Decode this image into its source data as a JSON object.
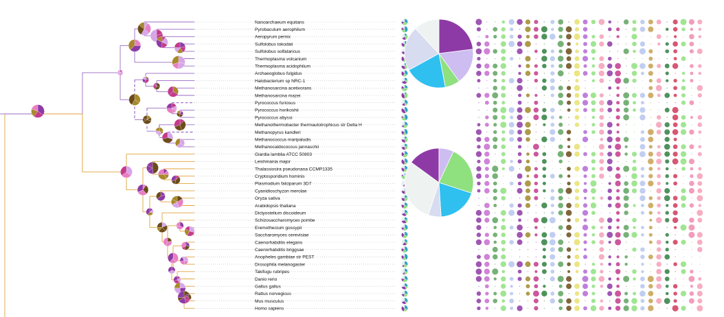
{
  "colors": {
    "archaea_branch": "#9b6ac2",
    "eukaryota_branch": "#e0a23a",
    "dashed_branch": "#6a2a82",
    "leader_dots": "#bbbbbb",
    "label_default": "#111111",
    "label_gallus": "#f2e600",
    "label_homo": "#4ee04e",
    "pie_palette": [
      "#8e3aa6",
      "#c33b8c",
      "#a8882a",
      "#d6a6e8",
      "#e87fc4",
      "#6b4b1a",
      "#5fa35f",
      "#2f7f3f",
      "#8fe07f",
      "#f5a0b8",
      "#b6c6f0",
      "#cdbdf0",
      "#2fc0f0"
    ]
  },
  "taxa": [
    {
      "name": "Nanoarchaeum equitans",
      "group": "archaea",
      "label_color": "default"
    },
    {
      "name": "Pyrobaculum aerophilum",
      "group": "archaea",
      "label_color": "default"
    },
    {
      "name": "Aeropyrum pernix",
      "group": "archaea",
      "label_color": "default"
    },
    {
      "name": "Sulfolobus tokodaii",
      "group": "archaea",
      "label_color": "default"
    },
    {
      "name": "Sulfolobus solfataricus",
      "group": "archaea",
      "label_color": "default"
    },
    {
      "name": "Thermoplasma volcanium",
      "group": "archaea",
      "label_color": "default"
    },
    {
      "name": "Thermoplasma acidophilum",
      "group": "archaea",
      "label_color": "default"
    },
    {
      "name": "Archaeoglobus fulgidus",
      "group": "archaea",
      "label_color": "default"
    },
    {
      "name": "Halobacterium sp NRC-1",
      "group": "archaea",
      "label_color": "default"
    },
    {
      "name": "Methanosarcina acetivorans",
      "group": "archaea",
      "label_color": "default"
    },
    {
      "name": "Methanosarcina mazei",
      "group": "archaea",
      "label_color": "default"
    },
    {
      "name": "Pyrococcus furiosus",
      "group": "archaea",
      "label_color": "default"
    },
    {
      "name": "Pyrococcus horikoshii",
      "group": "archaea",
      "label_color": "default"
    },
    {
      "name": "Pyrococcus abyssi",
      "group": "archaea",
      "label_color": "default"
    },
    {
      "name": "Methanothermobacter thermautotrophicus str Delta H",
      "group": "archaea",
      "label_color": "default"
    },
    {
      "name": "Methanopyrus kandleri",
      "group": "archaea",
      "label_color": "default"
    },
    {
      "name": "Methanococcus maripaludis",
      "group": "archaea",
      "label_color": "default"
    },
    {
      "name": "Methanocaldococcus jannaschii",
      "group": "archaea",
      "label_color": "default"
    },
    {
      "name": "Giardia lamblia ATCC 50803",
      "group": "eukaryota",
      "label_color": "default"
    },
    {
      "name": "Leishmania major",
      "group": "eukaryota",
      "label_color": "default"
    },
    {
      "name": "Thalassiosira pseudonana CCMP1335",
      "group": "eukaryota",
      "label_color": "default"
    },
    {
      "name": "Cryptosporidium hominis",
      "group": "eukaryota",
      "label_color": "default"
    },
    {
      "name": "Plasmodium falciparum 3D7",
      "group": "eukaryota",
      "label_color": "default"
    },
    {
      "name": "Cyanidioschyzon merolae",
      "group": "eukaryota",
      "label_color": "default"
    },
    {
      "name": "Oryza sativa",
      "group": "eukaryota",
      "label_color": "default"
    },
    {
      "name": "Arabidopsis thaliana",
      "group": "eukaryota",
      "label_color": "default"
    },
    {
      "name": "Dictyostelium discoideum",
      "group": "eukaryota",
      "label_color": "default"
    },
    {
      "name": "Schizosaccharomyces pombe",
      "group": "eukaryota",
      "label_color": "default"
    },
    {
      "name": "Eremothecium gossypii",
      "group": "eukaryota",
      "label_color": "default"
    },
    {
      "name": "Saccharomyces cerevisiae",
      "group": "eukaryota",
      "label_color": "default"
    },
    {
      "name": "Caenorhabditis elegans",
      "group": "eukaryota",
      "label_color": "default"
    },
    {
      "name": "Caenorhabditis briggsae",
      "group": "eukaryota",
      "label_color": "default"
    },
    {
      "name": "Anopheles gambiae str PEST",
      "group": "eukaryota",
      "label_color": "default"
    },
    {
      "name": "Drosophila melanogaster",
      "group": "eukaryota",
      "label_color": "default"
    },
    {
      "name": "Takifugu rubripes",
      "group": "eukaryota",
      "label_color": "default"
    },
    {
      "name": "Danio rerio",
      "group": "eukaryota",
      "label_color": "default"
    },
    {
      "name": "Gallus gallus",
      "group": "eukaryota",
      "label_color": "gallus"
    },
    {
      "name": "Rattus norvegicus",
      "group": "eukaryota",
      "label_color": "default"
    },
    {
      "name": "Mus musculus",
      "group": "eukaryota",
      "label_color": "default"
    },
    {
      "name": "Homo sapiens",
      "group": "eukaryota",
      "label_color": "homo"
    }
  ],
  "summary_pies": [
    {
      "name": "archaea-summary",
      "slices": [
        {
          "value": 0.23,
          "color": "#8e3aa6"
        },
        {
          "value": 0.17,
          "color": "#cdbdf0"
        },
        {
          "value": 0.07,
          "color": "#8fe07f"
        },
        {
          "value": 0.2,
          "color": "#2fc0f0"
        },
        {
          "value": 0.21,
          "color": "#d8dcf0"
        },
        {
          "value": 0.12,
          "color": "#eef3f2"
        }
      ]
    },
    {
      "name": "eukaryota-summary",
      "slices": [
        {
          "value": 0.07,
          "color": "#cdbdf0"
        },
        {
          "value": 0.23,
          "color": "#8fe07f"
        },
        {
          "value": 0.19,
          "color": "#2fc0f0"
        },
        {
          "value": 0.06,
          "color": "#d8dcf0"
        },
        {
          "value": 0.3,
          "color": "#eef3f2"
        },
        {
          "value": 0.15,
          "color": "#8e3aa6"
        }
      ]
    }
  ],
  "matrix": {
    "columns": 28,
    "column_colors": [
      "#8e3aa6",
      "#c76fd0",
      "#5fa35f",
      "#8fe07f",
      "#b6c6f0",
      "#8e3aa6",
      "#a08a2a",
      "#c33b8c",
      "#2f7f3f",
      "#b6c6f0",
      "#5fa35f",
      "#6b4b1a",
      "#e8e070",
      "#b46ad6",
      "#8fe07f",
      "#f5a0b8",
      "#8e3aa6",
      "#c33b8c",
      "#5fa35f",
      "#8fe07f",
      "#b6c6f0",
      "#c8a050",
      "#f5a0b8",
      "#2f7f3f",
      "#d03a5a",
      "#8fe07f",
      "#f08cb0",
      "#f5a0b8"
    ]
  }
}
